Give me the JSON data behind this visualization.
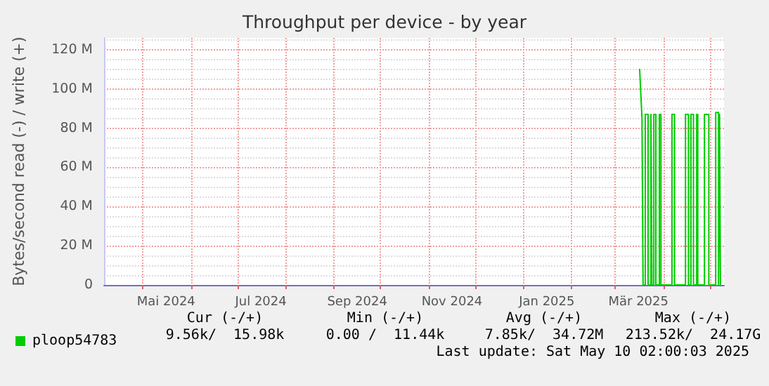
{
  "chart_data": {
    "type": "line",
    "title": "Throughput per device - by year",
    "ylabel": "Bytes/second read (-) / write (+)",
    "xlim": [
      "2024-04-06T02:00",
      "2025-05-10T02:00"
    ],
    "xticks": [
      {
        "value": "2024-05-01",
        "label": null
      },
      {
        "value": "2024-05-16",
        "label": "Mai 2024"
      },
      {
        "value": "2024-06-01",
        "label": null
      },
      {
        "value": "2024-07-01",
        "label": null
      },
      {
        "value": "2024-07-16",
        "label": "Jul 2024"
      },
      {
        "value": "2024-08-01",
        "label": null
      },
      {
        "value": "2024-09-01",
        "label": null
      },
      {
        "value": "2024-09-16",
        "label": "Sep 2024"
      },
      {
        "value": "2024-10-01",
        "label": null
      },
      {
        "value": "2024-11-01",
        "label": null
      },
      {
        "value": "2024-11-16",
        "label": "Nov 2024"
      },
      {
        "value": "2024-12-01",
        "label": null
      },
      {
        "value": "2025-01-01",
        "label": null
      },
      {
        "value": "2025-01-16",
        "label": "Jan 2025"
      },
      {
        "value": "2025-02-01",
        "label": null
      },
      {
        "value": "2025-03-01",
        "label": null
      },
      {
        "value": "2025-03-16",
        "label": "Mär 2025"
      },
      {
        "value": "2025-04-01",
        "label": null
      },
      {
        "value": "2025-05-01",
        "label": null
      }
    ],
    "ylim": [
      0,
      126000000
    ],
    "yticks": [
      {
        "value": 0,
        "label": "0"
      },
      {
        "value": 20000000,
        "label": "20 M"
      },
      {
        "value": 40000000,
        "label": "40 M"
      },
      {
        "value": 60000000,
        "label": "60 M"
      },
      {
        "value": 80000000,
        "label": "80 M"
      },
      {
        "value": 100000000,
        "label": "100 M"
      },
      {
        "value": 120000000,
        "label": "120 M"
      }
    ],
    "grid": true,
    "legend": "bottom left",
    "marker": "none",
    "line_style": "solid",
    "series": [
      {
        "name": "ploop54783",
        "color": "#00cc00",
        "x": [
          "2025-03-16T19:00",
          "2025-03-18T07:00",
          "2025-03-19T00:00",
          "2025-03-20T10:00",
          "2025-03-20T10:00",
          "2025-03-22T05:00",
          "2025-03-22T05:00",
          "2025-03-24T02:00",
          "2025-03-24T02:00",
          "2025-03-24T17:00",
          "2025-03-24T17:00",
          "2025-03-25T22:00",
          "2025-03-25T22:00",
          "2025-03-27T05:00",
          "2025-03-27T05:00",
          "2025-03-29T12:00",
          "2025-03-29T12:00",
          "2025-03-30T12:00",
          "2025-03-30T12:00",
          "2025-04-06T14:00",
          "2025-04-06T14:00",
          "2025-04-08T05:00",
          "2025-04-08T05:00",
          "2025-04-15T07:00",
          "2025-04-15T07:00",
          "2025-04-17T05:00",
          "2025-04-17T05:00",
          "2025-04-18T19:00",
          "2025-04-18T19:00",
          "2025-04-20T10:00",
          "2025-04-20T10:00",
          "2025-04-22T12:00",
          "2025-04-22T12:00",
          "2025-04-23T05:00",
          "2025-04-23T05:00",
          "2025-04-27T12:00",
          "2025-04-27T12:00",
          "2025-04-30T07:00",
          "2025-04-30T07:00",
          "2025-05-04T18:00",
          "2025-05-04T18:00",
          "2025-05-06T14:00",
          "2025-05-06T14:00",
          "2025-05-07T05:00",
          "2025-05-07T05:00",
          "2025-05-07T19:00",
          "2025-05-07T19:00"
        ],
        "values": [
          110000000,
          85000000,
          0,
          0,
          87000000,
          87000000,
          0,
          0,
          87000000,
          87000000,
          0,
          0,
          87000000,
          87000000,
          0,
          0,
          87000000,
          87000000,
          0,
          0,
          87000000,
          87000000,
          0,
          0,
          87000000,
          87000000,
          0,
          0,
          87000000,
          87000000,
          0,
          0,
          87000000,
          87000000,
          0,
          0,
          87000000,
          87000000,
          0,
          0,
          88000000,
          88000000,
          0,
          0,
          87000000,
          87000000,
          0
        ]
      }
    ],
    "annotations": [
      "Cur (-/+)",
      "Min (-/+)",
      "Avg (-/+)",
      "Max (-/+)",
      "9.56k/  15.98k",
      "0.00 /  11.44k",
      "7.85k/  34.72M",
      "213.52k/  24.17G",
      "Last update: Sat May 10 02:00:03 2025"
    ]
  }
}
